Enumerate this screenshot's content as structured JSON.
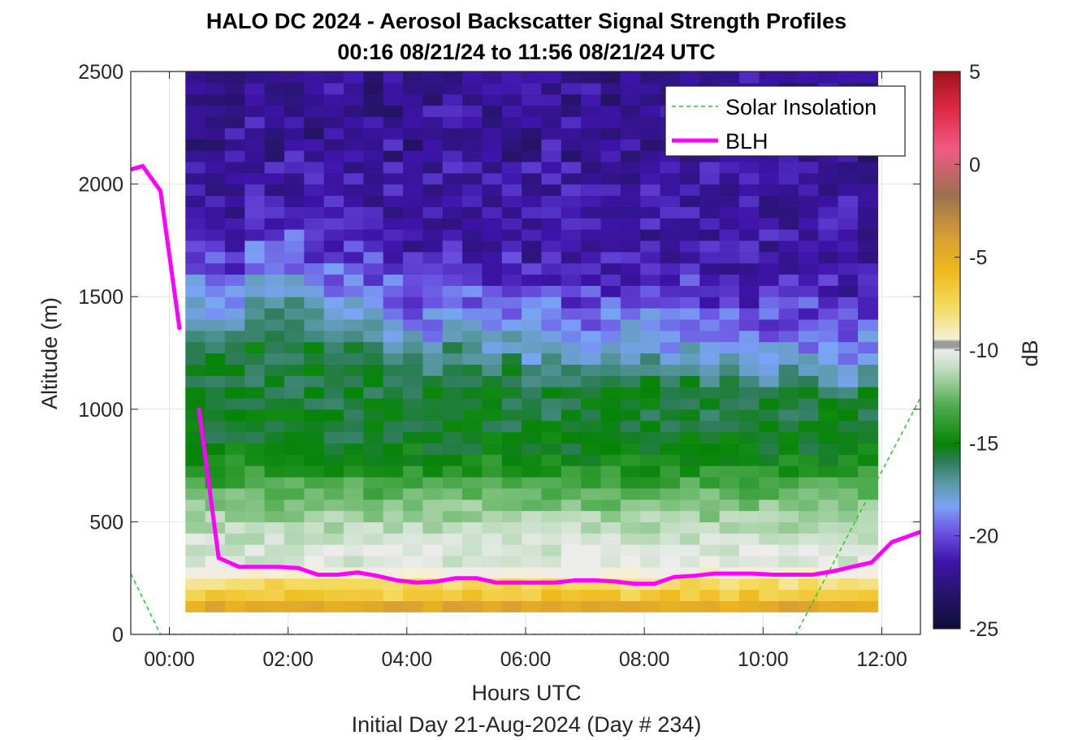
{
  "chart_data": {
    "type": "heatmap",
    "title": "HALO DC 2024 - Aerosol Backscatter Signal Strength Profiles",
    "subtitle": "00:16 08/21/24 to 11:56 08/21/24  UTC",
    "xlabel": "Hours UTC",
    "x_sublabel": "Initial Day 21-Aug-2024 (Day # 234)",
    "ylabel": "Altitude (m)",
    "colorbar_label": "dB",
    "xlim_hours": [
      -0.65,
      12.65
    ],
    "ylim": [
      0,
      2500
    ],
    "x_ticks": [
      {
        "value": 0,
        "label": "00:00"
      },
      {
        "value": 2,
        "label": "02:00"
      },
      {
        "value": 4,
        "label": "04:00"
      },
      {
        "value": 6,
        "label": "06:00"
      },
      {
        "value": 8,
        "label": "08:00"
      },
      {
        "value": 10,
        "label": "10:00"
      },
      {
        "value": 12,
        "label": "12:00"
      }
    ],
    "y_ticks": [
      0,
      500,
      1000,
      1500,
      2000,
      2500
    ],
    "colorbar_range": [
      -25,
      5
    ],
    "colorbar_ticks": [
      5,
      0,
      -5,
      -10,
      -15,
      -20,
      -25
    ],
    "grid": true,
    "legend_position": "top-right",
    "heatmap": {
      "x_start_hours": 0.27,
      "x_end_hours": 11.93,
      "columns": 35,
      "y_start_m": 100,
      "y_end_m": 2500,
      "bin_height_m": 50
    },
    "series": [
      {
        "name": "Solar Insolation",
        "style": "dashed",
        "color": "#22cc22",
        "x": [
          -0.65,
          -0.15,
          10.55,
          12.65
        ],
        "y": [
          270,
          0,
          0,
          1050
        ]
      },
      {
        "name": "BLH",
        "style": "solid",
        "color": "#ff00ff",
        "segments": [
          {
            "x": [
              -0.65,
              -0.45,
              -0.15,
              0.17
            ],
            "y": [
              2065,
              2080,
              1970,
              1360
            ]
          },
          {
            "x": [
              0.5,
              0.83,
              1.17,
              1.5,
              1.83,
              2.17,
              2.5,
              2.83,
              3.17,
              3.5,
              3.83,
              4.17,
              4.5,
              4.83,
              5.17,
              5.5,
              5.83,
              6.17,
              6.5,
              6.83,
              7.17,
              7.5,
              7.83,
              8.17,
              8.5,
              8.83,
              9.17,
              9.5,
              9.83,
              10.17,
              10.5,
              10.83,
              11.17,
              11.5,
              11.83,
              12.17,
              12.65
            ],
            "y": [
              1000,
              340,
              300,
              300,
              300,
              295,
              265,
              265,
              275,
              260,
              240,
              230,
              235,
              250,
              250,
              230,
              230,
              230,
              230,
              240,
              240,
              235,
              225,
              225,
              255,
              260,
              270,
              270,
              270,
              265,
              265,
              265,
              280,
              300,
              320,
              410,
              455
            ]
          }
        ]
      }
    ]
  }
}
